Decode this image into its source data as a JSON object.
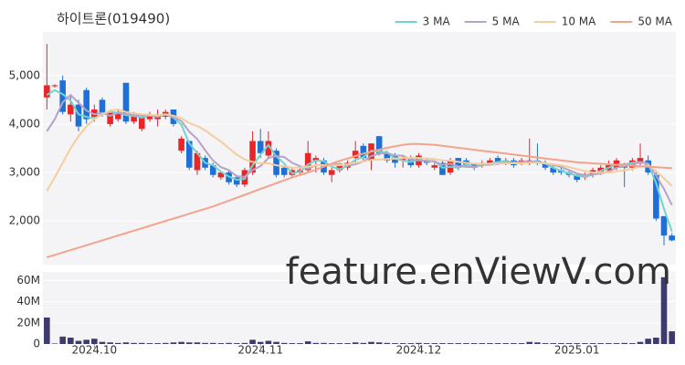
{
  "chart_data": [
    {
      "type": "candlestick",
      "title": "하이트론(019490)",
      "watermark": "feature.enViewV.com",
      "up_color": "#e8262a",
      "down_color": "#1f6fd8",
      "open": [
        4550,
        4780,
        4900,
        4200,
        4400,
        4700,
        4150,
        4500,
        4000,
        4100,
        4850,
        4050,
        3900,
        4100,
        4100,
        4150,
        4300,
        3450,
        3650,
        3050,
        3300,
        3150,
        2900,
        3000,
        2900,
        2750,
        3000,
        3650,
        3350,
        3450,
        3100,
        2950,
        3000,
        3050,
        3250,
        3250,
        2950,
        3050,
        3100,
        3300,
        3550,
        3250,
        3750,
        3400,
        3350,
        3250,
        3300,
        3150,
        3250,
        3100,
        3200,
        3000,
        3300,
        3250,
        3200,
        3150,
        3200,
        3300,
        3200,
        3250,
        3200,
        3200,
        3250,
        3200,
        3100,
        3050,
        3000,
        2950,
        2900,
        2950,
        3000,
        3050,
        3100,
        3150,
        3100,
        3200,
        3250,
        2950,
        2100,
        1700
      ],
      "high": [
        5650,
        4820,
        5000,
        4600,
        4500,
        4750,
        4400,
        4550,
        4300,
        4300,
        4850,
        4250,
        4200,
        4250,
        4300,
        4300,
        4300,
        3750,
        3650,
        3450,
        3350,
        3200,
        3000,
        3050,
        2950,
        3100,
        3850,
        3900,
        3850,
        3500,
        3150,
        3100,
        3100,
        3650,
        3350,
        3300,
        3100,
        3200,
        3250,
        3650,
        3600,
        3600,
        3750,
        3450,
        3400,
        3350,
        3350,
        3400,
        3300,
        3200,
        3250,
        3300,
        3300,
        3300,
        3200,
        3250,
        3300,
        3350,
        3300,
        3300,
        3300,
        3700,
        3600,
        3250,
        3150,
        3100,
        3050,
        3000,
        3000,
        3100,
        3150,
        3250,
        3300,
        3200,
        3300,
        3600,
        3350,
        3000,
        2100,
        1750
      ],
      "low": [
        4300,
        4750,
        4200,
        4050,
        3850,
        4000,
        4050,
        4150,
        3950,
        4050,
        4000,
        4000,
        3850,
        4050,
        3950,
        4100,
        3950,
        3400,
        3050,
        2950,
        3050,
        2900,
        2850,
        2750,
        2700,
        2700,
        2950,
        3300,
        3300,
        2900,
        2900,
        2900,
        2950,
        3000,
        3000,
        2950,
        2800,
        3000,
        3050,
        3200,
        3250,
        3050,
        3350,
        3200,
        3100,
        3100,
        3100,
        3100,
        3150,
        3050,
        2950,
        2950,
        3050,
        3100,
        3050,
        3100,
        3150,
        3150,
        3150,
        3100,
        3150,
        3150,
        3150,
        3050,
        2950,
        2950,
        2900,
        2800,
        2850,
        2900,
        2950,
        3000,
        3050,
        2700,
        3050,
        3150,
        2950,
        2000,
        1500,
        1580
      ],
      "close": [
        4800,
        4800,
        4250,
        4400,
        3950,
        4100,
        4300,
        4200,
        4250,
        4250,
        4050,
        4200,
        4150,
        4200,
        4150,
        4250,
        4000,
        3700,
        3100,
        3400,
        3100,
        2950,
        3000,
        2800,
        2750,
        3050,
        3650,
        3400,
        3650,
        2950,
        2950,
        3050,
        3050,
        3400,
        3300,
        3000,
        3050,
        3150,
        3200,
        3450,
        3300,
        3600,
        3400,
        3250,
        3200,
        3300,
        3150,
        3350,
        3200,
        3150,
        2950,
        3250,
        3100,
        3150,
        3100,
        3200,
        3250,
        3200,
        3250,
        3150,
        3250,
        3250,
        3200,
        3100,
        3000,
        3000,
        2950,
        2850,
        2950,
        3050,
        3100,
        3150,
        3250,
        3100,
        3250,
        3300,
        3000,
        2050,
        1700,
        1600
      ],
      "series": [
        {
          "name": "3 MA",
          "color": "#72d3cf",
          "values": [
            4600,
            4700,
            4617,
            4483,
            4200,
            4150,
            4117,
            4200,
            4250,
            4233,
            4183,
            4167,
            4133,
            4183,
            4167,
            4200,
            4133,
            3983,
            3600,
            3400,
            3200,
            3150,
            3017,
            2917,
            2850,
            2867,
            3150,
            3367,
            3567,
            3333,
            3183,
            2983,
            3017,
            3167,
            3250,
            3233,
            3117,
            3067,
            3133,
            3267,
            3317,
            3450,
            3433,
            3417,
            3283,
            3250,
            3217,
            3267,
            3233,
            3233,
            3100,
            3117,
            3100,
            3167,
            3117,
            3150,
            3183,
            3217,
            3233,
            3200,
            3217,
            3217,
            3233,
            3183,
            3100,
            3033,
            2983,
            2933,
            2917,
            2950,
            3033,
            3100,
            3167,
            3167,
            3200,
            3217,
            3183,
            2783,
            2250,
            1783
          ]
        },
        {
          "name": "5 MA",
          "color": "#b6a3c9",
          "values": [
            3850,
            4100,
            4450,
            4600,
            4440,
            4280,
            4200,
            4230,
            4170,
            4230,
            4210,
            4190,
            4180,
            4170,
            4150,
            4190,
            4150,
            4060,
            3840,
            3690,
            3460,
            3250,
            3110,
            3050,
            2920,
            2910,
            3050,
            3130,
            3300,
            3340,
            3320,
            3200,
            3130,
            3080,
            3150,
            3160,
            3160,
            3180,
            3140,
            3170,
            3230,
            3340,
            3390,
            3400,
            3350,
            3350,
            3260,
            3250,
            3240,
            3230,
            3160,
            3180,
            3130,
            3120,
            3110,
            3160,
            3160,
            3180,
            3200,
            3210,
            3220,
            3220,
            3220,
            3190,
            3160,
            3110,
            3050,
            2980,
            2950,
            2960,
            2980,
            3020,
            3100,
            3130,
            3170,
            3210,
            3180,
            2940,
            2660,
            2330
          ]
        },
        {
          "name": "10 MA",
          "color": "#f5cd9c",
          "values": [
            2620,
            2900,
            3200,
            3500,
            3750,
            3950,
            4100,
            4200,
            4280,
            4300,
            4250,
            4220,
            4200,
            4190,
            4180,
            4200,
            4170,
            4120,
            4020,
            3960,
            3870,
            3750,
            3640,
            3500,
            3370,
            3270,
            3220,
            3190,
            3190,
            3150,
            3130,
            3100,
            3100,
            3120,
            3150,
            3150,
            3150,
            3150,
            3170,
            3200,
            3230,
            3260,
            3270,
            3280,
            3290,
            3300,
            3300,
            3300,
            3290,
            3280,
            3250,
            3240,
            3220,
            3200,
            3180,
            3180,
            3180,
            3180,
            3190,
            3190,
            3190,
            3200,
            3200,
            3190,
            3170,
            3150,
            3110,
            3070,
            3030,
            3000,
            3000,
            3000,
            3020,
            3050,
            3080,
            3120,
            3150,
            3030,
            2880,
            2720
          ]
        },
        {
          "name": "50 MA",
          "color": "#f4a38b",
          "values": [
            1250,
            1300,
            1350,
            1400,
            1450,
            1500,
            1550,
            1600,
            1650,
            1700,
            1750,
            1800,
            1850,
            1900,
            1950,
            2000,
            2050,
            2100,
            2150,
            2200,
            2250,
            2300,
            2360,
            2420,
            2480,
            2540,
            2600,
            2660,
            2720,
            2780,
            2840,
            2900,
            2950,
            3000,
            3060,
            3120,
            3180,
            3240,
            3290,
            3340,
            3390,
            3430,
            3470,
            3510,
            3540,
            3570,
            3590,
            3590,
            3580,
            3570,
            3550,
            3530,
            3510,
            3490,
            3470,
            3450,
            3430,
            3410,
            3390,
            3370,
            3350,
            3330,
            3310,
            3290,
            3270,
            3250,
            3230,
            3210,
            3200,
            3190,
            3180,
            3170,
            3160,
            3150,
            3140,
            3130,
            3120,
            3110,
            3100,
            3090
          ]
        }
      ],
      "legend": "top-right",
      "grid": true,
      "ylim": [
        1100,
        5900
      ],
      "yticks": [
        {
          "value": 2000,
          "label": "2,000"
        },
        {
          "value": 3000,
          "label": "3,000"
        },
        {
          "value": 4000,
          "label": "4,000"
        },
        {
          "value": 5000,
          "label": "5,000"
        }
      ]
    },
    {
      "type": "bar",
      "color": "#3d3b6e",
      "grid": true,
      "categories": [
        null,
        null,
        null,
        null,
        null,
        null,
        "2024.10",
        null,
        null,
        null,
        null,
        null,
        null,
        null,
        null,
        null,
        null,
        null,
        null,
        null,
        null,
        null,
        null,
        null,
        null,
        null,
        null,
        "2024.11",
        null,
        null,
        null,
        null,
        null,
        null,
        null,
        null,
        null,
        null,
        null,
        null,
        null,
        null,
        null,
        null,
        null,
        null,
        null,
        "2024.12",
        null,
        null,
        null,
        null,
        null,
        null,
        null,
        null,
        null,
        null,
        null,
        null,
        null,
        null,
        null,
        null,
        null,
        null,
        null,
        "2025.01",
        null,
        null,
        null,
        null,
        null,
        null,
        null,
        null,
        null,
        null,
        null,
        null
      ],
      "values": [
        25000000,
        500000,
        7000000,
        6000000,
        3000000,
        4000000,
        5000000,
        2000000,
        1500000,
        1000000,
        1500000,
        1000000,
        1000000,
        800000,
        800000,
        1000000,
        1500000,
        2000000,
        1500000,
        1500000,
        1000000,
        1000000,
        800000,
        1000000,
        800000,
        1000000,
        4000000,
        2000000,
        3000000,
        2000000,
        1000000,
        800000,
        800000,
        2500000,
        1000000,
        1000000,
        800000,
        800000,
        800000,
        1500000,
        1000000,
        2000000,
        1500000,
        1000000,
        800000,
        800000,
        800000,
        1000000,
        800000,
        800000,
        800000,
        800000,
        800000,
        800000,
        800000,
        800000,
        800000,
        800000,
        800000,
        800000,
        800000,
        2000000,
        1500000,
        800000,
        800000,
        800000,
        800000,
        800000,
        800000,
        800000,
        800000,
        800000,
        800000,
        1000000,
        800000,
        2000000,
        5000000,
        6000000,
        63000000,
        12000000
      ],
      "ylim": [
        0,
        68000000
      ],
      "yticks": [
        0,
        {
          "value": 20000000,
          "label": "20M"
        },
        {
          "value": 40000000,
          "label": "40M"
        },
        {
          "value": 60000000,
          "label": "60M"
        }
      ]
    }
  ]
}
